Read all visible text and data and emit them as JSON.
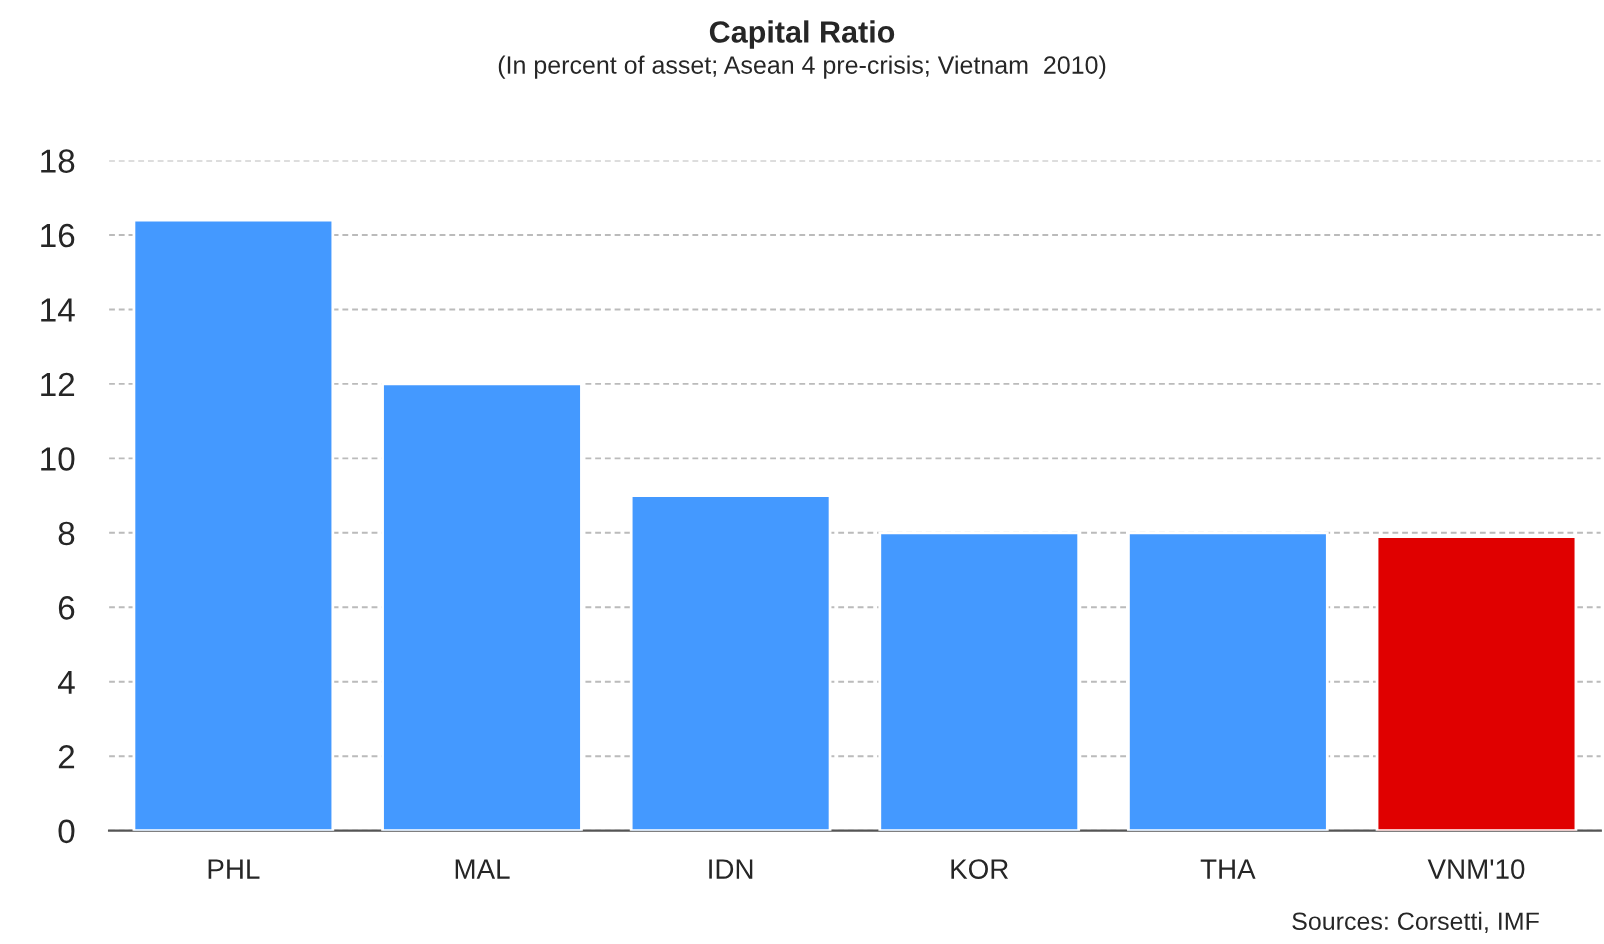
{
  "chart_data": {
    "type": "bar",
    "title": "Capital Ratio",
    "subtitle": "(In percent of asset; Asean 4 pre-crisis; Vietnam  2010)",
    "categories": [
      "PHL",
      "MAL",
      "IDN",
      "KOR",
      "THA",
      "VNM'10"
    ],
    "values": [
      16.4,
      12.0,
      9.0,
      8.0,
      8.0,
      7.9
    ],
    "colors": [
      "#4499ff",
      "#4499ff",
      "#4499ff",
      "#4499ff",
      "#4499ff",
      "#e00000"
    ],
    "ylim": [
      0,
      18
    ],
    "yticks": [
      0,
      2,
      4,
      6,
      8,
      10,
      12,
      14,
      16,
      18
    ],
    "grid": "y",
    "legend": false,
    "annotations": [
      "Sources: Corsetti, IMF"
    ]
  }
}
